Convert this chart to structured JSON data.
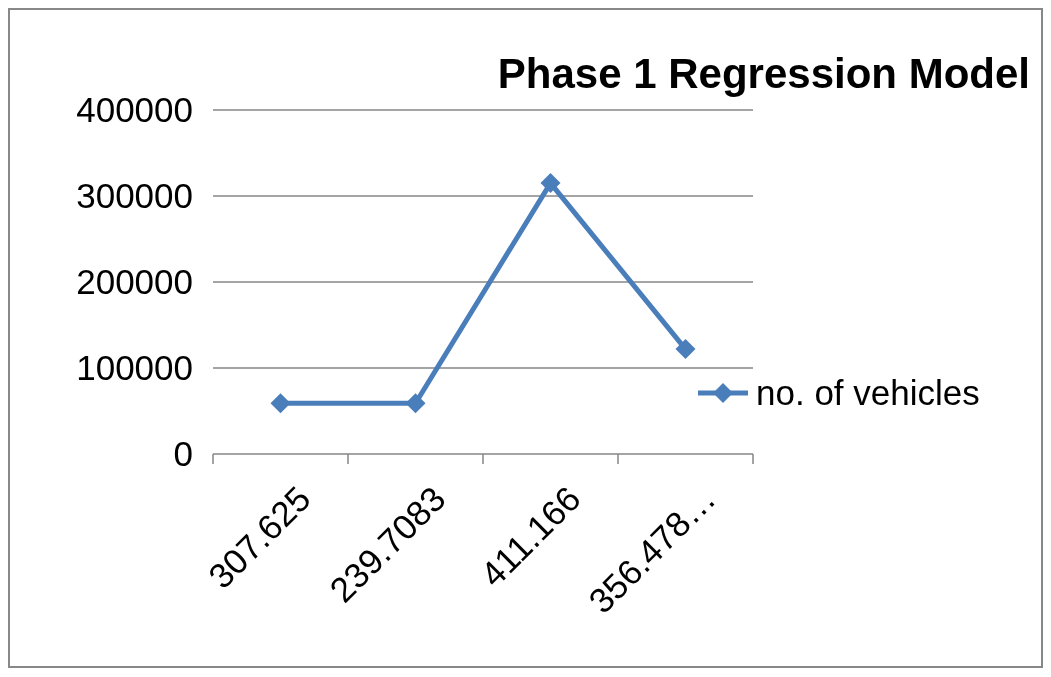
{
  "chart_data": {
    "type": "line",
    "title": "Phase 1 Regression Model",
    "categories": [
      "307.625",
      "239.7083",
      "411.166",
      "356.478…"
    ],
    "series": [
      {
        "name": "no. of vehicles",
        "color": "#4a7ebb",
        "values": [
          59000,
          59000,
          315000,
          122000
        ]
      }
    ],
    "ylim": [
      0,
      400000
    ],
    "yticks": [
      0,
      100000,
      200000,
      300000,
      400000
    ],
    "grid": "y",
    "legend": "right",
    "marker": "diamond",
    "line_style": "solid"
  }
}
